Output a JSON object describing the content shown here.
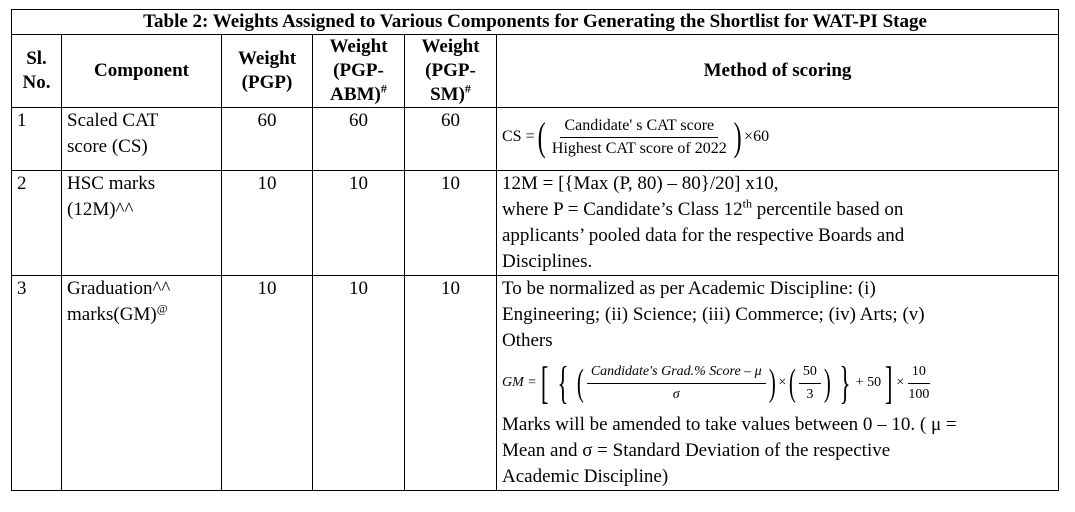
{
  "caption": "Table 2: Weights Assigned to Various Components for Generating the Shortlist for WAT-PI Stage",
  "headers": {
    "sl_no": [
      "Sl.",
      "No."
    ],
    "component": "Component",
    "weight_pgp": [
      "Weight",
      "(PGP)"
    ],
    "weight_abm": [
      "Weight",
      "(PGP-",
      "ABM)",
      "#"
    ],
    "weight_sm": [
      "Weight",
      "(PGP-",
      "SM)",
      "#"
    ],
    "method": "Method of scoring"
  },
  "rows": [
    {
      "sl": "1",
      "component": [
        "Scaled CAT",
        "score (CS)"
      ],
      "pgp": "60",
      "abm": "60",
      "sm": "60",
      "formula": {
        "lhs": "CS =",
        "numerator": "Candidate' s CAT score",
        "denominator": "Highest CAT score of 2022",
        "multiplier": "×60"
      }
    },
    {
      "sl": "2",
      "component": [
        "HSC marks",
        "(12M)^^"
      ],
      "pgp": "10",
      "abm": "10",
      "sm": "10",
      "method_lines": [
        "12M = [{Max (P, 80) – 80}/20] x10,",
        "where P = Candidate’s Class 12",
        "th",
        " percentile based on",
        "applicants’ pooled data for the respective Boards and",
        "Disciplines."
      ]
    },
    {
      "sl": "3",
      "component": [
        "Graduation^^",
        "marks(GM)",
        "@"
      ],
      "pgp": "10",
      "abm": "10",
      "sm": "10",
      "method_intro": [
        "To be normalized as per Academic Discipline: (i)",
        "Engineering; (ii) Science; (iii) Commerce; (iv) Arts; (v)",
        "Others"
      ],
      "formula": {
        "lhs": "GM =",
        "numerator": "Candidate's Grad.% Score – μ",
        "denominator": "σ",
        "times1": "×",
        "inner_num": "50",
        "inner_den": "3",
        "plus": "+ 50",
        "times2": "×",
        "outer_num": "10",
        "outer_den": "100"
      },
      "method_outro": [
        "Marks will be amended to take values between 0 – 10. ( μ =",
        "Mean and σ = Standard Deviation of the respective",
        "Academic Discipline)"
      ]
    }
  ]
}
